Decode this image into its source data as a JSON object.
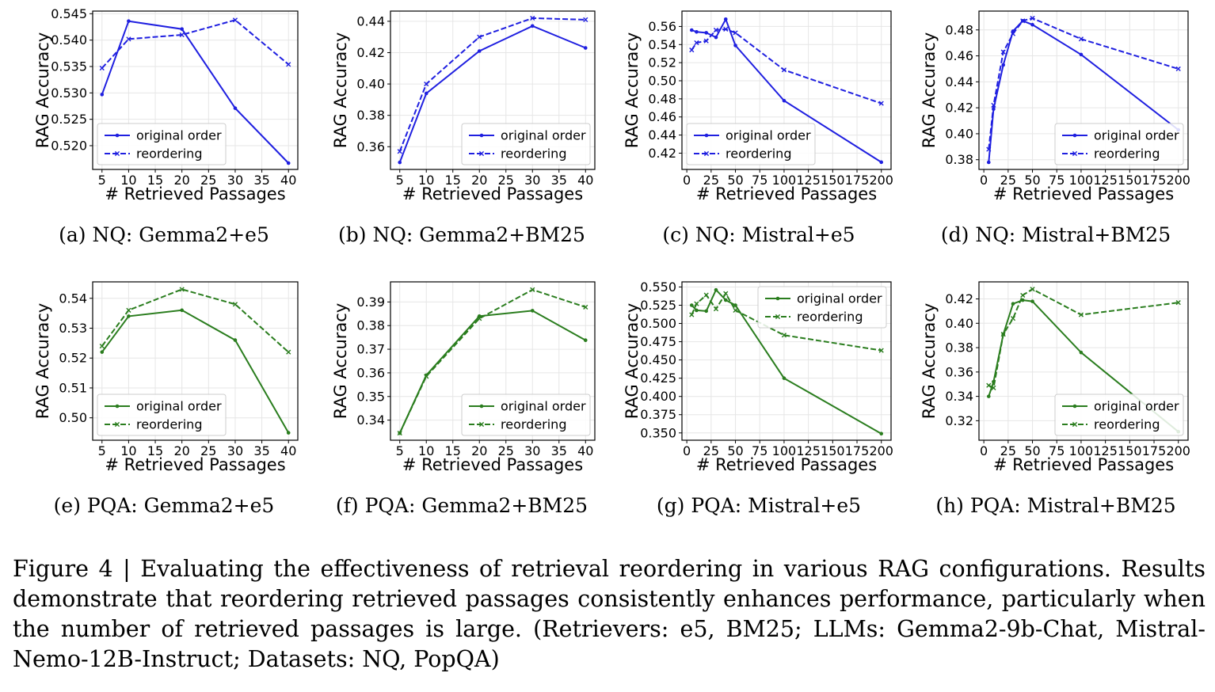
{
  "figure": {
    "caption": "Figure 4 | Evaluating the effectiveness of retrieval reordering in various RAG configurations. Results demonstrate that reordering retrieved passages consistently enhances performance, particularly when the number of retrieved passages is large. (Retrievers: e5, BM25; LLMs: Gemma2-9b-Chat, Mistral-Nemo-12B-Instruct; Datasets: NQ, PopQA)"
  },
  "chart_data": [
    {
      "type": "line",
      "subcaption": "(a)  NQ: Gemma2+e5",
      "xlabel": "# Retrieved Passages",
      "ylabel": "RAG Accuracy",
      "color": "#1f1fe0",
      "xlim": [
        3.25,
        41.75
      ],
      "ylim": [
        0.5155,
        0.5455
      ],
      "xticks": [
        5,
        10,
        15,
        20,
        25,
        30,
        35,
        40
      ],
      "yticks": [
        0.52,
        0.525,
        0.53,
        0.535,
        0.54,
        0.545
      ],
      "ytick_labels": [
        "0.520",
        "0.525",
        "0.530",
        "0.535",
        "0.540",
        "0.545"
      ],
      "legend_position": "lower-left",
      "grid": true,
      "series": [
        {
          "name": "original order",
          "style": "solid",
          "marker": "dot",
          "x": [
            5,
            10,
            20,
            30,
            40
          ],
          "y": [
            0.5297,
            0.5436,
            0.5421,
            0.5271,
            0.5167
          ]
        },
        {
          "name": "reordering",
          "style": "dashed",
          "marker": "x",
          "x": [
            5,
            10,
            20,
            30,
            40
          ],
          "y": [
            0.5347,
            0.5402,
            0.541,
            0.5438,
            0.5354
          ]
        }
      ]
    },
    {
      "type": "line",
      "subcaption": "(b)  NQ: Gemma2+BM25",
      "xlabel": "# Retrieved Passages",
      "ylabel": "RAG Accuracy",
      "color": "#1f1fe0",
      "xlim": [
        3.25,
        41.75
      ],
      "ylim": [
        0.3455,
        0.4465
      ],
      "xticks": [
        5,
        10,
        15,
        20,
        25,
        30,
        35,
        40
      ],
      "yticks": [
        0.36,
        0.38,
        0.4,
        0.42,
        0.44
      ],
      "ytick_labels": [
        "0.36",
        "0.38",
        "0.40",
        "0.42",
        "0.44"
      ],
      "legend_position": "lower-right",
      "grid": true,
      "series": [
        {
          "name": "original order",
          "style": "solid",
          "marker": "dot",
          "x": [
            5,
            10,
            20,
            30,
            40
          ],
          "y": [
            0.35,
            0.394,
            0.421,
            0.437,
            0.423
          ]
        },
        {
          "name": "reordering",
          "style": "dashed",
          "marker": "x",
          "x": [
            5,
            10,
            20,
            30,
            40
          ],
          "y": [
            0.357,
            0.4,
            0.43,
            0.442,
            0.441
          ]
        }
      ]
    },
    {
      "type": "line",
      "subcaption": "(c)  NQ: Mistral+e5",
      "xlabel": "# Retrieved Passages",
      "ylabel": "RAG Accuracy",
      "color": "#1f1fe0",
      "xlim": [
        -5,
        210
      ],
      "ylim": [
        0.402,
        0.577
      ],
      "xticks": [
        0,
        25,
        50,
        75,
        100,
        125,
        150,
        175,
        200
      ],
      "yticks": [
        0.42,
        0.44,
        0.46,
        0.48,
        0.5,
        0.52,
        0.54,
        0.56
      ],
      "ytick_labels": [
        "0.42",
        "0.44",
        "0.46",
        "0.48",
        "0.50",
        "0.52",
        "0.54",
        "0.56"
      ],
      "legend_position": "lower-left",
      "grid": true,
      "series": [
        {
          "name": "original order",
          "style": "solid",
          "marker": "dot",
          "x": [
            5,
            10,
            20,
            30,
            40,
            50,
            100,
            200
          ],
          "y": [
            0.556,
            0.554,
            0.553,
            0.548,
            0.568,
            0.539,
            0.478,
            0.41
          ]
        },
        {
          "name": "reordering",
          "style": "dashed",
          "marker": "x",
          "x": [
            5,
            10,
            20,
            30,
            40,
            50,
            100,
            200
          ],
          "y": [
            0.534,
            0.542,
            0.544,
            0.556,
            0.557,
            0.553,
            0.512,
            0.475
          ]
        }
      ]
    },
    {
      "type": "line",
      "subcaption": "(d)  NQ: Mistral+BM25",
      "xlabel": "# Retrieved Passages",
      "ylabel": "RAG Accuracy",
      "color": "#1f1fe0",
      "xlim": [
        -5,
        210
      ],
      "ylim": [
        0.3725,
        0.4945
      ],
      "xticks": [
        0,
        25,
        50,
        75,
        100,
        125,
        150,
        175,
        200
      ],
      "yticks": [
        0.38,
        0.4,
        0.42,
        0.44,
        0.46,
        0.48
      ],
      "ytick_labels": [
        "0.38",
        "0.40",
        "0.42",
        "0.44",
        "0.46",
        "0.48"
      ],
      "legend_position": "lower-right",
      "grid": true,
      "series": [
        {
          "name": "original order",
          "style": "solid",
          "marker": "dot",
          "x": [
            5,
            10,
            20,
            30,
            40,
            50,
            100,
            200
          ],
          "y": [
            0.378,
            0.419,
            0.453,
            0.479,
            0.487,
            0.484,
            0.461,
            0.403
          ]
        },
        {
          "name": "reordering",
          "style": "dashed",
          "marker": "x",
          "x": [
            5,
            10,
            20,
            30,
            40,
            50,
            100,
            200
          ],
          "y": [
            0.388,
            0.422,
            0.463,
            0.477,
            0.487,
            0.489,
            0.473,
            0.45
          ]
        }
      ]
    },
    {
      "type": "line",
      "subcaption": "(e)  PQA: Gemma2+e5",
      "xlabel": "# Retrieved Passages",
      "ylabel": "RAG Accuracy",
      "color": "#2a7d1e",
      "xlim": [
        3.25,
        41.75
      ],
      "ylim": [
        0.4925,
        0.5455
      ],
      "xticks": [
        5,
        10,
        15,
        20,
        25,
        30,
        35,
        40
      ],
      "yticks": [
        0.5,
        0.51,
        0.52,
        0.53,
        0.54
      ],
      "ytick_labels": [
        "0.50",
        "0.51",
        "0.52",
        "0.53",
        "0.54"
      ],
      "legend_position": "lower-left",
      "grid": true,
      "series": [
        {
          "name": "original order",
          "style": "solid",
          "marker": "dot",
          "x": [
            5,
            10,
            20,
            30,
            40
          ],
          "y": [
            0.522,
            0.534,
            0.536,
            0.526,
            0.495
          ]
        },
        {
          "name": "reordering",
          "style": "dashed",
          "marker": "x",
          "x": [
            5,
            10,
            20,
            30,
            40
          ],
          "y": [
            0.524,
            0.536,
            0.543,
            0.538,
            0.522
          ]
        }
      ]
    },
    {
      "type": "line",
      "subcaption": "(f)  PQA: Gemma2+BM25",
      "xlabel": "# Retrieved Passages",
      "ylabel": "RAG Accuracy",
      "color": "#2a7d1e",
      "xlim": [
        3.25,
        41.75
      ],
      "ylim": [
        0.3315,
        0.3985
      ],
      "xticks": [
        5,
        10,
        15,
        20,
        25,
        30,
        35,
        40
      ],
      "yticks": [
        0.34,
        0.35,
        0.36,
        0.37,
        0.38,
        0.39
      ],
      "ytick_labels": [
        "0.34",
        "0.35",
        "0.36",
        "0.37",
        "0.38",
        "0.39"
      ],
      "legend_position": "lower-right",
      "grid": true,
      "series": [
        {
          "name": "original order",
          "style": "solid",
          "marker": "dot",
          "x": [
            5,
            10,
            20,
            30,
            40
          ],
          "y": [
            0.3345,
            0.359,
            0.384,
            0.3863,
            0.3738
          ]
        },
        {
          "name": "reordering",
          "style": "dashed",
          "marker": "x",
          "x": [
            5,
            10,
            20,
            30,
            40
          ],
          "y": [
            0.3345,
            0.3585,
            0.383,
            0.3952,
            0.3878
          ]
        }
      ]
    },
    {
      "type": "line",
      "subcaption": "(g)  PQA: Mistral+e5",
      "xlabel": "# Retrieved Passages",
      "ylabel": "RAG Accuracy",
      "color": "#2a7d1e",
      "xlim": [
        -5,
        210
      ],
      "ylim": [
        0.34,
        0.557
      ],
      "xticks": [
        0,
        25,
        50,
        75,
        100,
        125,
        150,
        175,
        200
      ],
      "yticks": [
        0.35,
        0.375,
        0.4,
        0.425,
        0.45,
        0.475,
        0.5,
        0.525,
        0.55
      ],
      "ytick_labels": [
        "0.350",
        "0.375",
        "0.400",
        "0.425",
        "0.450",
        "0.475",
        "0.500",
        "0.525",
        "0.550"
      ],
      "legend_position": "upper-right",
      "grid": true,
      "series": [
        {
          "name": "original order",
          "style": "solid",
          "marker": "dot",
          "x": [
            5,
            10,
            20,
            30,
            40,
            50,
            100,
            200
          ],
          "y": [
            0.525,
            0.518,
            0.517,
            0.546,
            0.532,
            0.525,
            0.425,
            0.349
          ]
        },
        {
          "name": "reordering",
          "style": "dashed",
          "marker": "x",
          "x": [
            5,
            10,
            20,
            30,
            40,
            50,
            100,
            200
          ],
          "y": [
            0.512,
            0.527,
            0.539,
            0.52,
            0.541,
            0.518,
            0.484,
            0.463
          ]
        }
      ]
    },
    {
      "type": "line",
      "subcaption": "(h)  PQA: Mistral+BM25",
      "xlabel": "# Retrieved Passages",
      "ylabel": "RAG Accuracy",
      "color": "#2a7d1e",
      "xlim": [
        -5,
        210
      ],
      "ylim": [
        0.304,
        0.434
      ],
      "xticks": [
        0,
        25,
        50,
        75,
        100,
        125,
        150,
        175,
        200
      ],
      "yticks": [
        0.32,
        0.34,
        0.36,
        0.38,
        0.4,
        0.42
      ],
      "ytick_labels": [
        "0.32",
        "0.34",
        "0.36",
        "0.38",
        "0.40",
        "0.42"
      ],
      "legend_position": "lower-right",
      "grid": true,
      "series": [
        {
          "name": "original order",
          "style": "solid",
          "marker": "dot",
          "x": [
            5,
            10,
            20,
            30,
            40,
            50,
            100,
            200
          ],
          "y": [
            0.34,
            0.352,
            0.391,
            0.416,
            0.419,
            0.418,
            0.376,
            0.311
          ]
        },
        {
          "name": "reordering",
          "style": "dashed",
          "marker": "x",
          "x": [
            5,
            10,
            20,
            30,
            40,
            50,
            100,
            200
          ],
          "y": [
            0.349,
            0.347,
            0.391,
            0.404,
            0.423,
            0.428,
            0.407,
            0.417
          ]
        }
      ]
    }
  ]
}
